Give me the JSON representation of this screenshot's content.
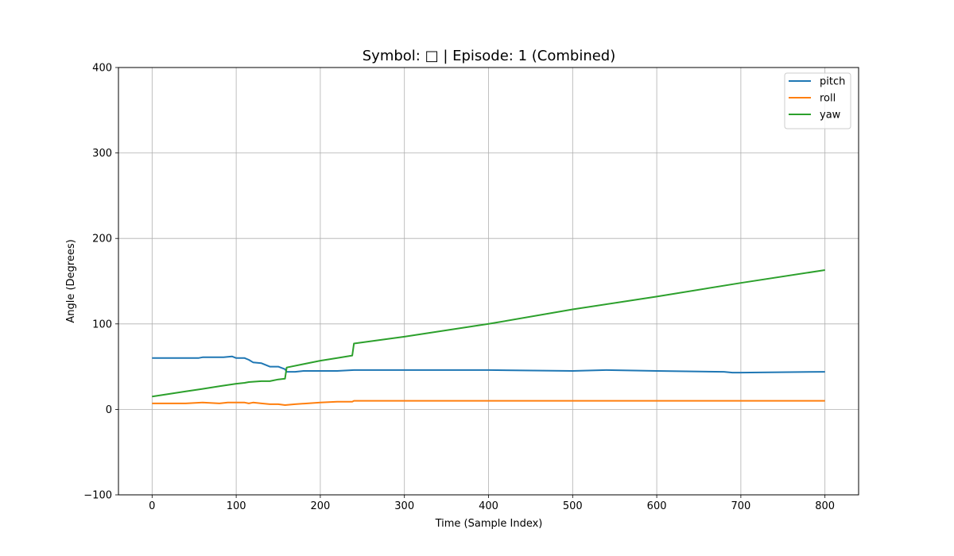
{
  "chart_data": {
    "type": "line",
    "title": "Symbol: □ | Episode: 1 (Combined)",
    "xlabel": "Time (Sample Index)",
    "ylabel": "Angle (Degrees)",
    "xlim": [
      -40,
      840
    ],
    "ylim": [
      -100,
      400
    ],
    "xticks": [
      0,
      100,
      200,
      300,
      400,
      500,
      600,
      700,
      800
    ],
    "yticks": [
      -100,
      0,
      100,
      200,
      300,
      400
    ],
    "grid": true,
    "legend_position": "top-right",
    "series": [
      {
        "name": "pitch",
        "color": "#1f77b4",
        "points": [
          [
            0,
            60
          ],
          [
            20,
            60
          ],
          [
            40,
            60
          ],
          [
            55,
            60
          ],
          [
            60,
            61
          ],
          [
            70,
            61
          ],
          [
            85,
            61
          ],
          [
            95,
            62
          ],
          [
            100,
            60
          ],
          [
            110,
            60
          ],
          [
            115,
            58
          ],
          [
            120,
            55
          ],
          [
            130,
            54
          ],
          [
            140,
            50
          ],
          [
            150,
            50
          ],
          [
            158,
            47
          ],
          [
            160,
            44
          ],
          [
            170,
            44
          ],
          [
            180,
            45
          ],
          [
            200,
            45
          ],
          [
            220,
            45
          ],
          [
            240,
            46
          ],
          [
            300,
            46
          ],
          [
            400,
            46
          ],
          [
            500,
            45
          ],
          [
            540,
            46
          ],
          [
            600,
            45
          ],
          [
            680,
            44
          ],
          [
            690,
            43
          ],
          [
            700,
            43
          ],
          [
            800,
            44
          ]
        ]
      },
      {
        "name": "roll",
        "color": "#ff7f0e",
        "points": [
          [
            0,
            7
          ],
          [
            40,
            7
          ],
          [
            60,
            8
          ],
          [
            80,
            7
          ],
          [
            90,
            8
          ],
          [
            100,
            8
          ],
          [
            110,
            8
          ],
          [
            115,
            7
          ],
          [
            120,
            8
          ],
          [
            130,
            7
          ],
          [
            140,
            6
          ],
          [
            150,
            6
          ],
          [
            158,
            5
          ],
          [
            170,
            6
          ],
          [
            200,
            8
          ],
          [
            220,
            9
          ],
          [
            238,
            9
          ],
          [
            240,
            10
          ],
          [
            300,
            10
          ],
          [
            400,
            10
          ],
          [
            500,
            10
          ],
          [
            600,
            10
          ],
          [
            700,
            10
          ],
          [
            800,
            10
          ]
        ]
      },
      {
        "name": "yaw",
        "color": "#2ca02c",
        "points": [
          [
            0,
            15
          ],
          [
            20,
            18
          ],
          [
            40,
            21
          ],
          [
            60,
            24
          ],
          [
            80,
            27
          ],
          [
            100,
            30
          ],
          [
            110,
            31
          ],
          [
            115,
            32
          ],
          [
            130,
            33
          ],
          [
            140,
            33
          ],
          [
            150,
            35
          ],
          [
            158,
            36
          ],
          [
            160,
            49
          ],
          [
            180,
            53
          ],
          [
            200,
            57
          ],
          [
            220,
            60
          ],
          [
            238,
            63
          ],
          [
            240,
            77
          ],
          [
            300,
            85
          ],
          [
            400,
            100
          ],
          [
            500,
            117
          ],
          [
            600,
            132
          ],
          [
            700,
            148
          ],
          [
            800,
            163
          ]
        ]
      }
    ]
  }
}
